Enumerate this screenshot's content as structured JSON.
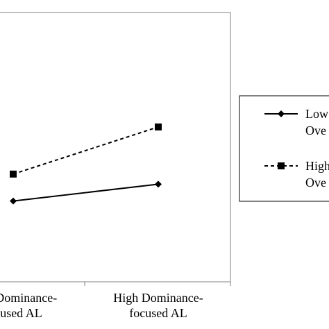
{
  "chart_data": {
    "type": "line",
    "categories": [
      [
        "Low Dominance-",
        "focused AL"
      ],
      [
        "High Dominance-",
        "focused AL"
      ]
    ],
    "series": [
      {
        "name": "Low Ove",
        "values": [
          3.2,
          3.45
        ],
        "color": "#000000",
        "line_style": "solid",
        "marker": "diamond"
      },
      {
        "name": "High Ove",
        "values": [
          3.6,
          4.3
        ],
        "color": "#000000",
        "line_style": "dashed",
        "marker": "square"
      }
    ],
    "ylim": [
      2.0,
      6.0
    ],
    "grid": false,
    "legend": {
      "placement": "right"
    }
  }
}
